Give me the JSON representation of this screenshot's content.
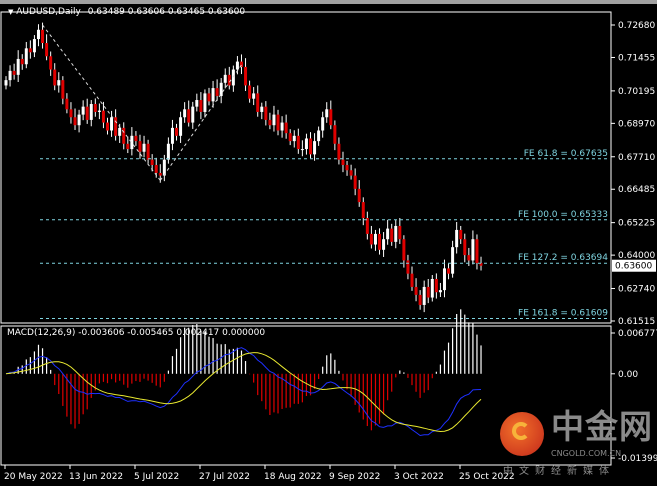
{
  "header": {
    "symbol": "AUDUSD,Daily",
    "ohlc": "0.63489 0.63606 0.63465 0.63600"
  },
  "macd_header": {
    "label": "MACD(12,26,9)",
    "values": "-0.003606 -0.005465 0.002417 0.000000"
  },
  "chart_data": {
    "type": "candlestick",
    "symbol": "AUDUSD",
    "timeframe": "Daily",
    "x_tick_labels": [
      "20 May 2022",
      "13 Jun 2022",
      "5 Jul 2022",
      "27 Jul 2022",
      "18 Aug 2022",
      "9 Sep 2022",
      "3 Oct 2022",
      "25 Oct 2022"
    ],
    "y_tick_labels": [
      "0.72680",
      "0.71455",
      "0.70195",
      "0.68970",
      "0.67710",
      "0.66485",
      "0.65225",
      "0.64000",
      "0.62740",
      "0.61515"
    ],
    "ylim": [
      0.61515,
      0.7268
    ],
    "current_price": "0.63600",
    "closes": [
      0.706,
      0.7095,
      0.708,
      0.714,
      0.712,
      0.718,
      0.7165,
      0.7215,
      0.725,
      0.72,
      0.715,
      0.71,
      0.704,
      0.706,
      0.699,
      0.695,
      0.692,
      0.689,
      0.693,
      0.696,
      0.691,
      0.697,
      0.694,
      0.6945,
      0.69,
      0.687,
      0.692,
      0.685,
      0.688,
      0.682,
      0.68,
      0.685,
      0.683,
      0.679,
      0.682,
      0.676,
      0.674,
      0.671,
      0.67,
      0.676,
      0.682,
      0.688,
      0.685,
      0.692,
      0.695,
      0.69,
      0.696,
      0.6985,
      0.694,
      0.701,
      0.698,
      0.703,
      0.7,
      0.705,
      0.708,
      0.704,
      0.71,
      0.713,
      0.711,
      0.704,
      0.699,
      0.701,
      0.694,
      0.696,
      0.691,
      0.689,
      0.693,
      0.687,
      0.69,
      0.686,
      0.683,
      0.685,
      0.68,
      0.68,
      0.684,
      0.678,
      0.683,
      0.687,
      0.692,
      0.695,
      0.689,
      0.682,
      0.676,
      0.674,
      0.672,
      0.67,
      0.665,
      0.66,
      0.654,
      0.648,
      0.644,
      0.648,
      0.642,
      0.646,
      0.65,
      0.645,
      0.651,
      0.646,
      0.638,
      0.633,
      0.628,
      0.625,
      0.6212,
      0.628,
      0.624,
      0.631,
      0.626,
      0.6268,
      0.635,
      0.633,
      0.643,
      0.6495,
      0.646,
      0.64,
      0.638,
      0.646,
      0.637,
      0.636
    ],
    "fibo_levels": [
      {
        "label": "FE 61.8 = 0.67635",
        "value": 0.67635
      },
      {
        "label": "FE 100.0 = 0.65333",
        "value": 0.65333
      },
      {
        "label": "FE 127.2 = 0.63694",
        "value": 0.63694
      },
      {
        "label": "FE 161.8 = 0.61609",
        "value": 0.61609
      }
    ],
    "fibo_anchor_prices": [
      0.7268,
      0.6682,
      0.7117
    ],
    "macd": {
      "params": [
        12,
        26,
        9
      ],
      "y_tick_labels": [
        "0.006777",
        "0.00",
        "-0.013991"
      ],
      "ylim": [
        -0.013991,
        0.006777
      ]
    },
    "colors": {
      "bull": "#ffffff",
      "bear": "#e00000",
      "fibo": "#7fd4e0",
      "macd_line": "#1e30ff",
      "signal_line": "#e8e830",
      "axis": "#ffffff"
    }
  },
  "watermark": {
    "brand": "中金网",
    "domain": "CNGOLD.COM.CN",
    "slogan": "中文财经新媒体"
  }
}
